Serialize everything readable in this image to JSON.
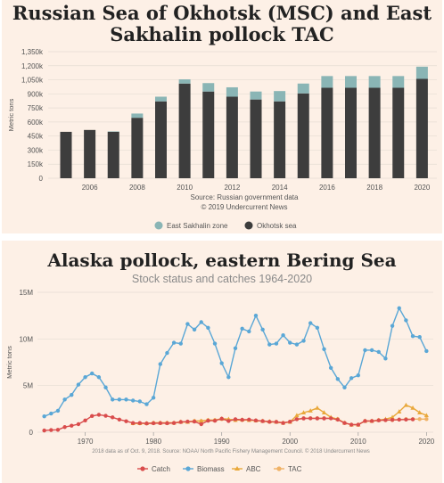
{
  "chart_data": [
    {
      "type": "bar",
      "title_line1": "Russian Sea of Okhotsk (MSC) and East",
      "title_line2": "Sakhalin pollock TAC",
      "ylabel": "Metric tons",
      "yticks": [
        "0",
        "150k",
        "300k",
        "450k",
        "600k",
        "750k",
        "900k",
        "1,050k",
        "1,200k",
        "1,350k"
      ],
      "ylim": [
        0,
        1350000
      ],
      "xticks": [
        "2006",
        "2008",
        "2010",
        "2012",
        "2014",
        "2016",
        "2018",
        "2020"
      ],
      "categories": [
        2005,
        2006,
        2007,
        2008,
        2009,
        2010,
        2011,
        2012,
        2013,
        2014,
        2015,
        2016,
        2017,
        2018,
        2019,
        2020
      ],
      "series": [
        {
          "name": "Okhotsk sea",
          "color": "#3d3d3d",
          "values": [
            495000,
            515000,
            495000,
            645000,
            820000,
            1010000,
            925000,
            870000,
            840000,
            820000,
            905000,
            965000,
            965000,
            965000,
            965000,
            1060000
          ]
        },
        {
          "name": "East Sakhalin zone",
          "color": "#8ab5b5",
          "values": [
            0,
            0,
            5000,
            45000,
            50000,
            45000,
            90000,
            100000,
            85000,
            110000,
            105000,
            125000,
            125000,
            125000,
            125000,
            130000
          ]
        }
      ],
      "source_line1": "Source: Russian government data",
      "source_line2": "© 2019 Undercurrent News",
      "legend": [
        "East Sakhalin zone",
        "Okhotsk sea"
      ]
    },
    {
      "type": "line",
      "title": "Alaska pollock, eastern Bering Sea",
      "subtitle": "Stock status and catches 1964-2020",
      "ylabel": "Metric tons",
      "yticks": [
        "0",
        "5M",
        "10M",
        "15M"
      ],
      "ylim": [
        0,
        15000000
      ],
      "xticks": [
        "1970",
        "1980",
        "1990",
        "2000",
        "2010",
        "2020"
      ],
      "xlim": [
        1963,
        2021
      ],
      "source": "2018 data as of Oct. 9, 2018. Source: NOAA/ North Pacific Fishery Management Council. © 2018 Undercurrent News",
      "legend": [
        "Catch",
        "Biomass",
        "ABC",
        "TAC"
      ],
      "series": [
        {
          "name": "Catch",
          "color": "#d94c4c",
          "x": [
            1964,
            1965,
            1966,
            1967,
            1968,
            1969,
            1970,
            1971,
            1972,
            1973,
            1974,
            1975,
            1976,
            1977,
            1978,
            1979,
            1980,
            1981,
            1982,
            1983,
            1984,
            1985,
            1986,
            1987,
            1988,
            1989,
            1990,
            1991,
            1992,
            1993,
            1994,
            1995,
            1996,
            1997,
            1998,
            1999,
            2000,
            2001,
            2002,
            2003,
            2004,
            2005,
            2006,
            2007,
            2008,
            2009,
            2010,
            2011,
            2012,
            2013,
            2014,
            2015,
            2016,
            2017,
            2018
          ],
          "values": [
            0.18,
            0.23,
            0.26,
            0.55,
            0.7,
            0.86,
            1.26,
            1.74,
            1.87,
            1.76,
            1.59,
            1.36,
            1.18,
            0.98,
            0.98,
            0.94,
            0.96,
            0.97,
            0.96,
            0.98,
            1.09,
            1.14,
            1.14,
            0.86,
            1.23,
            1.23,
            1.45,
            1.2,
            1.39,
            1.33,
            1.36,
            1.26,
            1.19,
            1.12,
            1.1,
            0.99,
            1.13,
            1.39,
            1.48,
            1.49,
            1.48,
            1.48,
            1.49,
            1.35,
            0.99,
            0.81,
            0.81,
            1.2,
            1.2,
            1.27,
            1.3,
            1.32,
            1.35,
            1.36,
            1.38
          ]
        },
        {
          "name": "Biomass",
          "color": "#5aa7d6",
          "x": [
            1964,
            1965,
            1966,
            1967,
            1968,
            1969,
            1970,
            1971,
            1972,
            1973,
            1974,
            1975,
            1976,
            1977,
            1978,
            1979,
            1980,
            1981,
            1982,
            1983,
            1984,
            1985,
            1986,
            1987,
            1988,
            1989,
            1990,
            1991,
            1992,
            1993,
            1994,
            1995,
            1996,
            1997,
            1998,
            1999,
            2000,
            2001,
            2002,
            2003,
            2004,
            2005,
            2006,
            2007,
            2008,
            2009,
            2010,
            2011,
            2012,
            2013,
            2014,
            2015,
            2016,
            2017,
            2018,
            2019,
            2020
          ],
          "values": [
            1.7,
            2.0,
            2.3,
            3.5,
            4.0,
            5.1,
            5.9,
            6.3,
            5.9,
            4.8,
            3.5,
            3.5,
            3.5,
            3.4,
            3.3,
            3.0,
            3.7,
            7.3,
            8.5,
            9.6,
            9.5,
            11.6,
            11.0,
            11.8,
            11.2,
            9.5,
            7.4,
            5.9,
            9.0,
            11.1,
            10.8,
            12.5,
            11.0,
            9.4,
            9.5,
            10.4,
            9.6,
            9.4,
            9.8,
            11.7,
            11.2,
            8.9,
            6.9,
            5.7,
            4.8,
            5.8,
            6.1,
            8.8,
            8.8,
            8.6,
            7.9,
            11.4,
            13.3,
            12.0,
            10.3,
            10.2,
            8.7
          ]
        },
        {
          "name": "ABC",
          "color": "#e9a83a",
          "x": [
            1977,
            1978,
            1979,
            1980,
            1981,
            1982,
            1983,
            1984,
            1985,
            1986,
            1987,
            1988,
            1989,
            1990,
            1991,
            1992,
            1993,
            1994,
            1995,
            1996,
            1997,
            1998,
            1999,
            2000,
            2001,
            2002,
            2003,
            2004,
            2005,
            2006,
            2007,
            2008,
            2009,
            2010,
            2011,
            2012,
            2013,
            2014,
            2015,
            2016,
            2017,
            2018,
            2019,
            2020
          ],
          "values": [
            0.95,
            0.95,
            0.95,
            1.0,
            1.0,
            1.0,
            1.0,
            1.1,
            1.1,
            1.2,
            1.2,
            1.3,
            1.3,
            1.45,
            1.4,
            1.3,
            1.35,
            1.3,
            1.25,
            1.2,
            1.15,
            1.1,
            1.0,
            1.1,
            1.8,
            2.1,
            2.3,
            2.6,
            2.1,
            1.6,
            1.4,
            1.0,
            0.8,
            0.8,
            1.2,
            1.2,
            1.3,
            1.4,
            1.6,
            2.2,
            2.9,
            2.6,
            2.1,
            1.8
          ]
        },
        {
          "name": "TAC",
          "color": "#f0b266",
          "x": [
            1977,
            1978,
            1979,
            1980,
            1981,
            1982,
            1983,
            1984,
            1985,
            1986,
            1987,
            1988,
            1989,
            1990,
            1991,
            1992,
            1993,
            1994,
            1995,
            1996,
            1997,
            1998,
            1999,
            2000,
            2001,
            2002,
            2003,
            2004,
            2005,
            2006,
            2007,
            2008,
            2009,
            2010,
            2011,
            2012,
            2013,
            2014,
            2015,
            2016,
            2017,
            2018,
            2019,
            2020
          ],
          "values": [
            0.95,
            0.95,
            0.95,
            1.0,
            1.0,
            1.0,
            1.0,
            1.1,
            1.1,
            1.2,
            1.2,
            1.3,
            1.3,
            1.4,
            1.3,
            1.3,
            1.3,
            1.3,
            1.25,
            1.2,
            1.1,
            1.1,
            1.0,
            1.1,
            1.4,
            1.5,
            1.5,
            1.5,
            1.5,
            1.5,
            1.4,
            1.0,
            0.8,
            0.8,
            1.2,
            1.2,
            1.3,
            1.3,
            1.3,
            1.35,
            1.4,
            1.4,
            1.4,
            1.4
          ]
        }
      ],
      "value_unit": "millions of metric tons"
    }
  ]
}
